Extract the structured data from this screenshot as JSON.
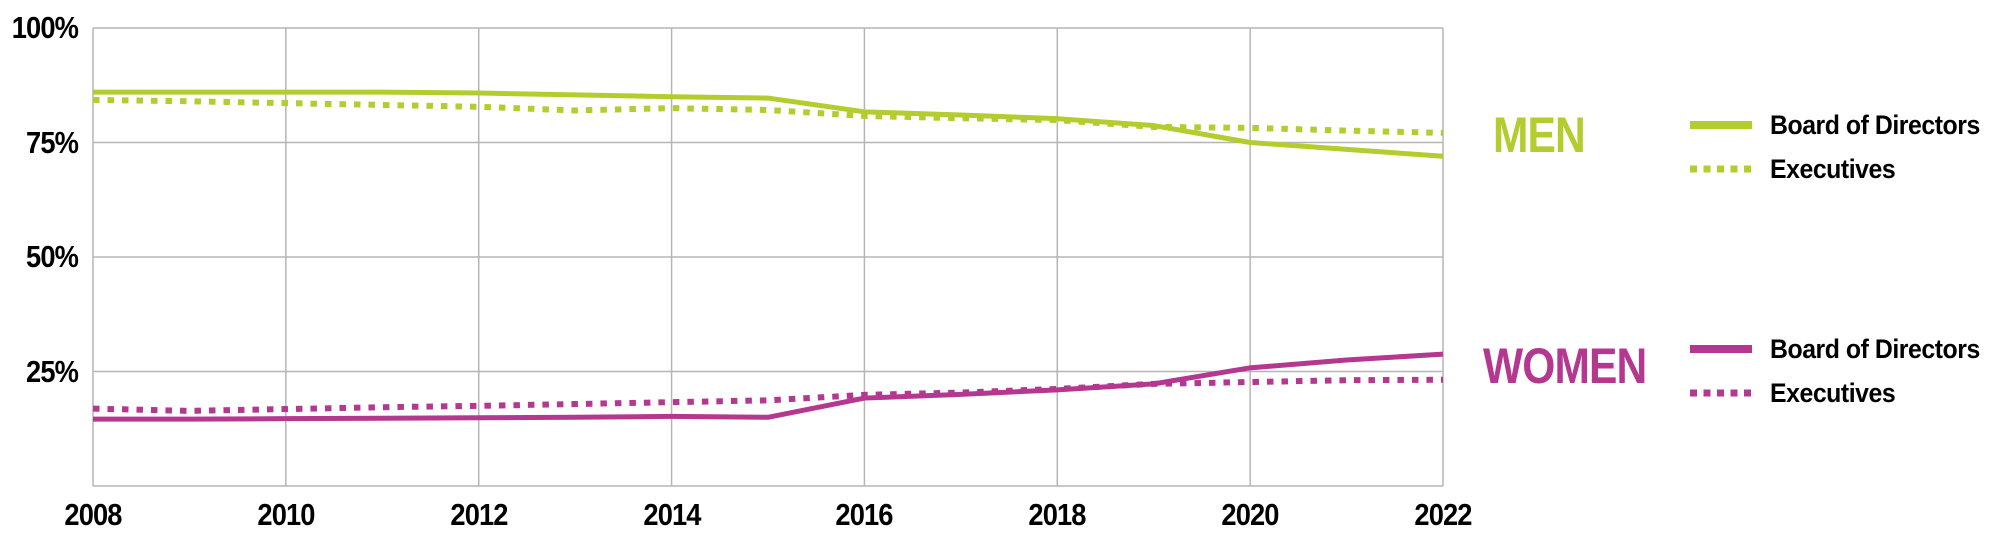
{
  "chart_data": {
    "type": "line",
    "x": [
      2008,
      2009,
      2010,
      2011,
      2012,
      2013,
      2014,
      2015,
      2016,
      2017,
      2018,
      2019,
      2020,
      2021,
      2022
    ],
    "x_ticks": [
      2008,
      2010,
      2012,
      2014,
      2016,
      2018,
      2020,
      2022
    ],
    "y_ticks": [
      {
        "value": 100,
        "label": "100%"
      },
      {
        "value": 75,
        "label": "75%"
      },
      {
        "value": 50,
        "label": "50%"
      },
      {
        "value": 25,
        "label": "25%"
      }
    ],
    "ylim": [
      0,
      100
    ],
    "xlim": [
      2008,
      2022
    ],
    "grid": true,
    "legend_position": "right",
    "unit": "%",
    "series": [
      {
        "name": "Men - Board of Directors",
        "group": "MEN",
        "style": "solid",
        "color": "#b4cc2d",
        "values": [
          86,
          86,
          86,
          86,
          85.8,
          85.4,
          85,
          84.7,
          81.7,
          81,
          80.2,
          78.7,
          75,
          73.5,
          72
        ]
      },
      {
        "name": "Men - Executives",
        "group": "MEN",
        "style": "dotted",
        "color": "#b4cc2d",
        "values": [
          84.3,
          84,
          83.6,
          83.2,
          82.8,
          82,
          82.5,
          82.1,
          80.8,
          80.3,
          79.9,
          78.4,
          78.2,
          77.6,
          77.1
        ]
      },
      {
        "name": "Women - Board of Directors",
        "group": "WOMEN",
        "style": "solid",
        "color": "#b43790",
        "values": [
          14.6,
          14.6,
          14.7,
          14.8,
          14.9,
          15,
          15.2,
          15,
          19.2,
          20,
          21,
          22.3,
          25.8,
          27.5,
          28.8
        ]
      },
      {
        "name": "Women - Executives",
        "group": "WOMEN",
        "style": "dotted",
        "color": "#b43790",
        "values": [
          16.9,
          16.4,
          16.8,
          17.2,
          17.5,
          17.9,
          18.3,
          18.7,
          19.9,
          20.4,
          21.2,
          22.3,
          22.7,
          23.1,
          23.2
        ]
      }
    ]
  },
  "legend": {
    "men": {
      "title": "MEN",
      "color": "#b4cc2d",
      "items": [
        {
          "label": "Board of Directors",
          "style": "solid"
        },
        {
          "label": "Executives",
          "style": "dotted"
        }
      ]
    },
    "women": {
      "title": "WOMEN",
      "color": "#b43790",
      "items": [
        {
          "label": "Board of Directors",
          "style": "solid"
        },
        {
          "label": "Executives",
          "style": "dotted"
        }
      ]
    }
  },
  "colors": {
    "men": "#b4cc2d",
    "women": "#b43790",
    "grid": "#b5b5b5",
    "text": "#000000",
    "background": "#ffffff"
  }
}
